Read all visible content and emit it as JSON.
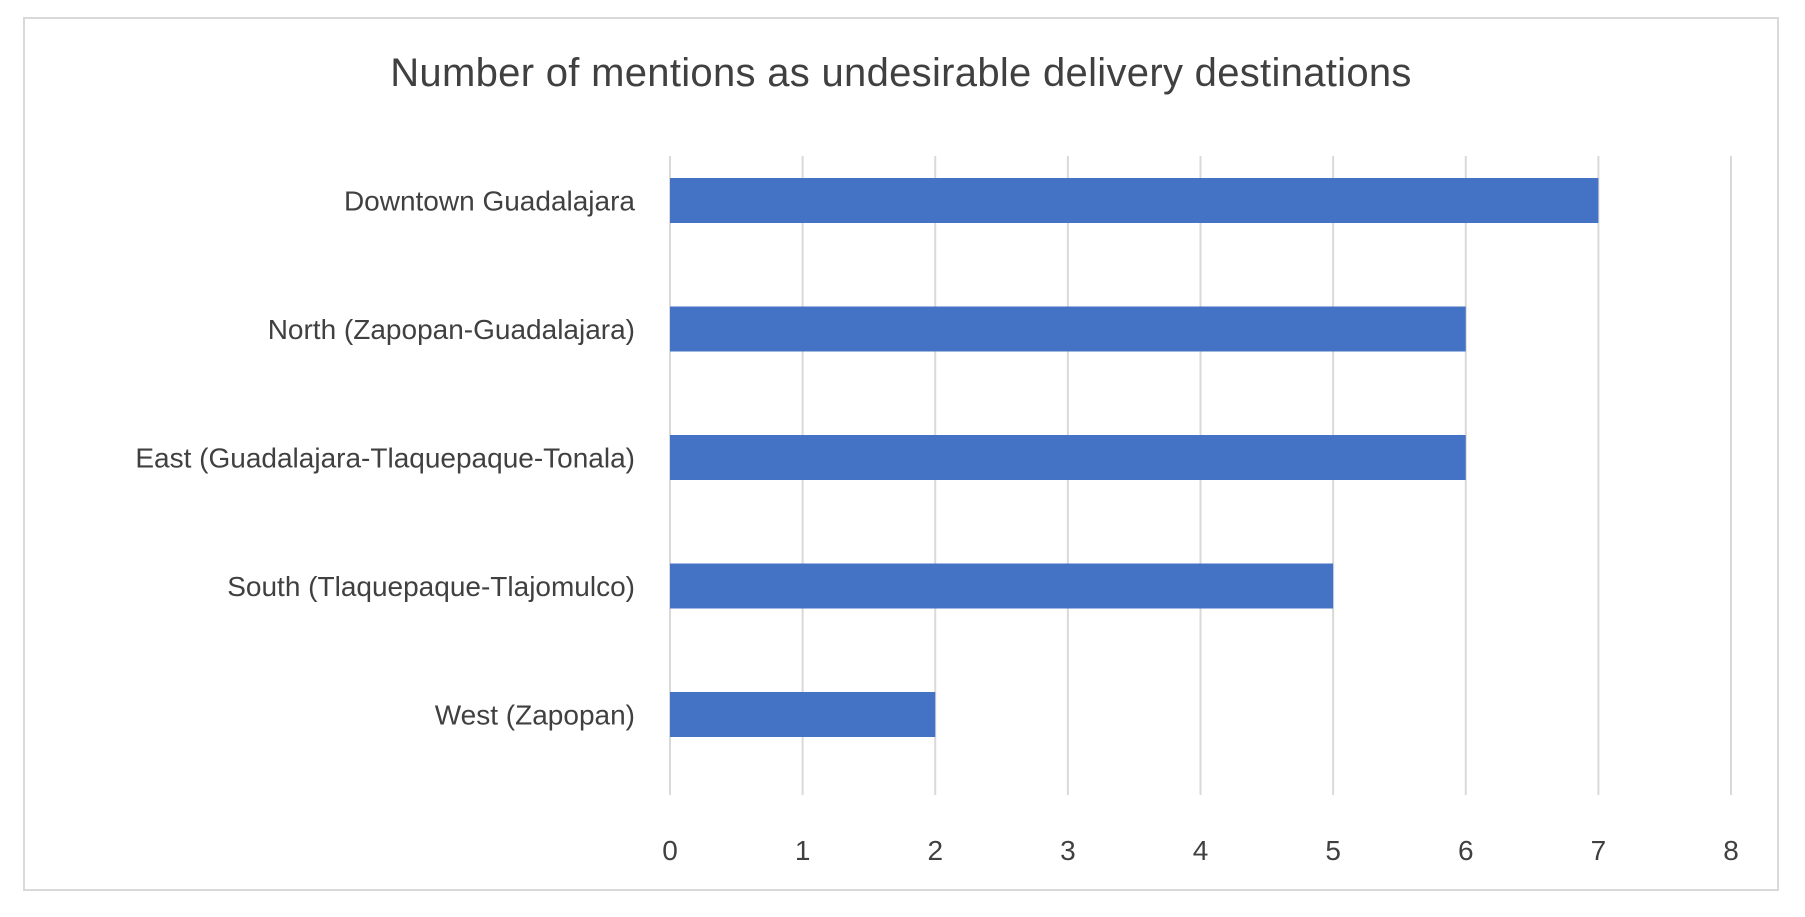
{
  "chart_data": {
    "type": "bar",
    "orientation": "horizontal",
    "title": "Number of mentions as undesirable delivery destinations",
    "xlabel": "",
    "ylabel": "",
    "categories": [
      "Downtown Guadalajara",
      "North (Zapopan-Guadalajara)",
      "East (Guadalajara-Tlaquepaque-Tonala)",
      "South (Tlaquepaque-Tlajomulco)",
      "West (Zapopan)"
    ],
    "values": [
      7,
      6,
      6,
      5,
      2
    ],
    "xlim": [
      0,
      8
    ],
    "xticks": [
      "0",
      "1",
      "2",
      "3",
      "4",
      "5",
      "6",
      "7",
      "8"
    ],
    "grid": "vertical",
    "legend": "none",
    "colors": {
      "bar": "#4472c4",
      "grid": "#d9d9d9",
      "text": "#404040",
      "border": "#d9d9d9"
    }
  }
}
